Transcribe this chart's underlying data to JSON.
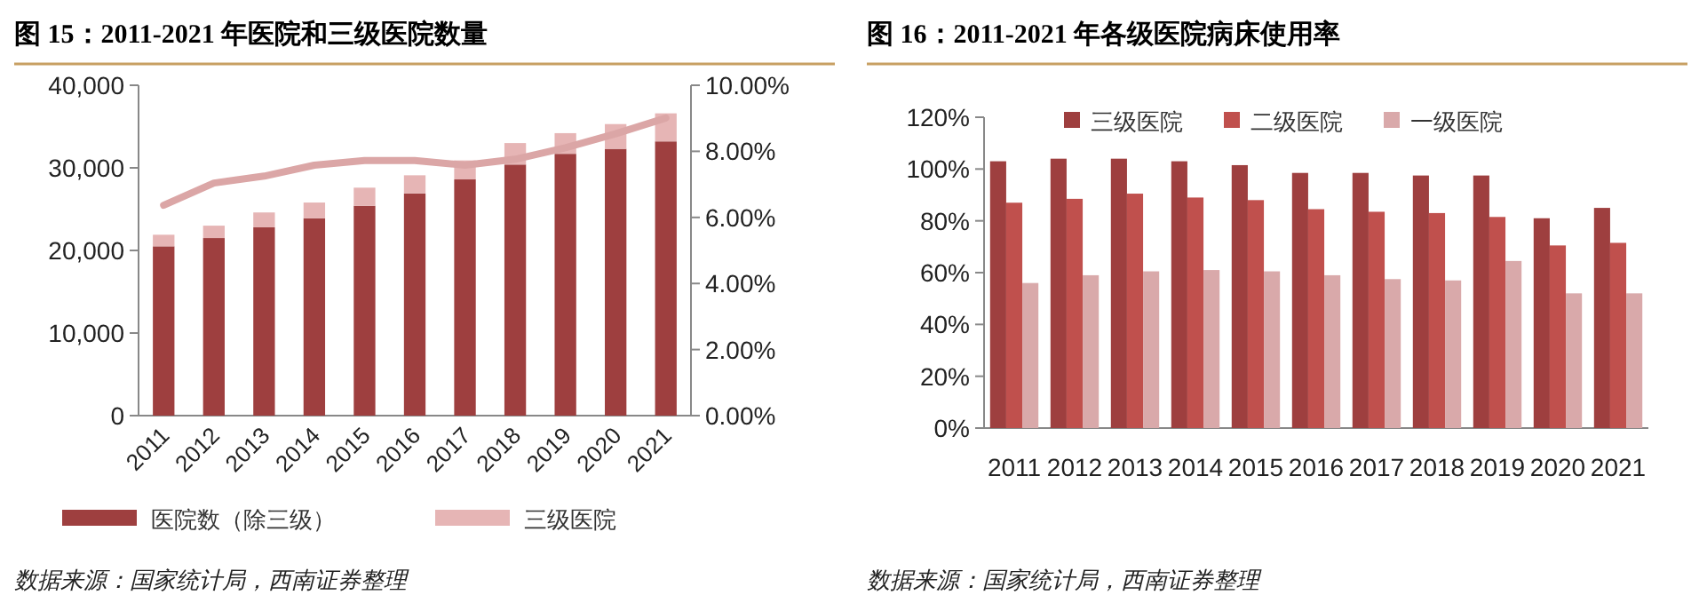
{
  "chart_data": [
    {
      "type": "bar",
      "title": "图 15：2011-2021 年医院和三级医院数量",
      "stacked": true,
      "legend": "bottom",
      "categories": [
        "2011",
        "2012",
        "2013",
        "2014",
        "2015",
        "2016",
        "2017",
        "2018",
        "2019",
        "2020",
        "2021"
      ],
      "series": [
        {
          "name": "医院数（除三级）",
          "color": "#9e3f3f",
          "values": [
            20500,
            21500,
            22800,
            23900,
            25400,
            26900,
            28600,
            30400,
            31700,
            32300,
            33200
          ]
        },
        {
          "name": "三级医院",
          "color": "#e6b5b5",
          "values": [
            1400,
            1500,
            1800,
            1900,
            2200,
            2200,
            2300,
            2600,
            2500,
            3000,
            3400
          ]
        },
        {
          "type": "line",
          "axis": "y2",
          "color": "#dba6a6",
          "values": [
            6.37,
            7.04,
            7.25,
            7.58,
            7.72,
            7.72,
            7.58,
            7.76,
            8.11,
            8.53,
            9.01
          ]
        }
      ],
      "ylim": [
        0,
        40000
      ],
      "yticks": [
        0,
        {
          "value": 10000,
          "label": "10,000"
        },
        {
          "value": 20000,
          "label": "20,000"
        },
        {
          "value": 30000,
          "label": "30,000"
        },
        {
          "value": 40000,
          "label": "40,000"
        }
      ],
      "y2lim": [
        0,
        10
      ],
      "y2ticks": [
        {
          "value": 0,
          "label": "0.00%"
        },
        {
          "value": 2,
          "label": "2.00%"
        },
        {
          "value": 4,
          "label": "4.00%"
        },
        {
          "value": 6,
          "label": "6.00%"
        },
        {
          "value": 8,
          "label": "8.00%"
        },
        {
          "value": 10,
          "label": "10.00%"
        }
      ],
      "annotations": [
        "数据来源：国家统计局，西南证券整理"
      ]
    },
    {
      "type": "bar",
      "title": "图 16：2011-2021 年各级医院病床使用率",
      "legend": "top",
      "categories": [
        "2011",
        "2012",
        "2013",
        "2014",
        "2015",
        "2016",
        "2017",
        "2018",
        "2019",
        "2020",
        "2021"
      ],
      "series": [
        {
          "name": "三级医院",
          "color": "#9e3f3f",
          "values": [
            103,
            104,
            104,
            103,
            101.5,
            98.5,
            98.5,
            97.5,
            97.5,
            81,
            85
          ]
        },
        {
          "name": "二级医院",
          "color": "#c0504d",
          "values": [
            87,
            88.5,
            90.5,
            89,
            88,
            84.5,
            83.5,
            83,
            81.5,
            70.5,
            71.5
          ]
        },
        {
          "name": "一级医院",
          "color": "#d9a9aa",
          "values": [
            56,
            59,
            60.5,
            61,
            60.5,
            59,
            57.5,
            57,
            64.5,
            52,
            52
          ]
        }
      ],
      "ylim": [
        0,
        120
      ],
      "yticks": [
        {
          "value": 0,
          "label": "0%"
        },
        {
          "value": 20,
          "label": "20%"
        },
        {
          "value": 40,
          "label": "40%"
        },
        {
          "value": 60,
          "label": "60%"
        },
        {
          "value": 80,
          "label": "80%"
        },
        {
          "value": 100,
          "label": "100%"
        },
        {
          "value": 120,
          "label": "120%"
        }
      ],
      "annotations": [
        "数据来源：国家统计局，西南证券整理"
      ]
    }
  ]
}
